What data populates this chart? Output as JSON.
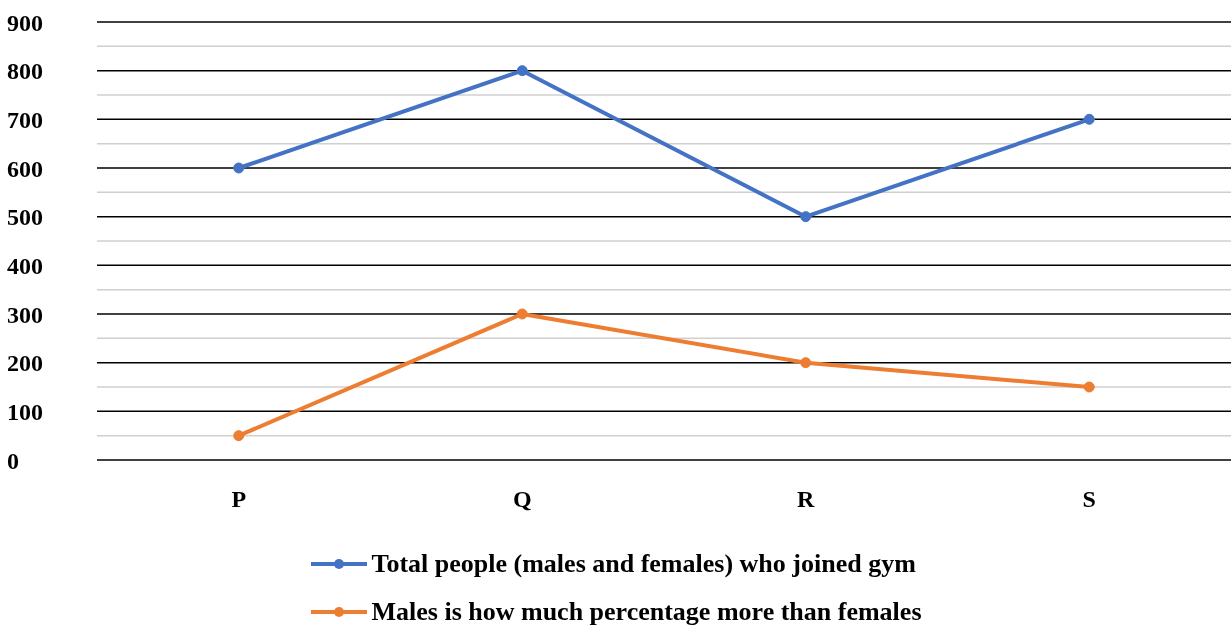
{
  "chart_data": {
    "type": "line",
    "categories": [
      "P",
      "Q",
      "R",
      "S"
    ],
    "series": [
      {
        "name": "Total people (males and females) who joined gym",
        "color": "#4472c4",
        "values": [
          600,
          800,
          500,
          700
        ]
      },
      {
        "name": "Males is how much percentage more than females",
        "color": "#ed7d31",
        "values": [
          50,
          300,
          200,
          150
        ]
      }
    ],
    "ylim": [
      0,
      900
    ],
    "yticks": [
      0,
      {
        "value": 50,
        "label": null
      },
      100,
      {
        "value": 150,
        "label": null
      },
      200,
      {
        "value": 250,
        "label": null
      },
      300,
      {
        "value": 350,
        "label": null
      },
      400,
      {
        "value": 450,
        "label": null
      },
      500,
      {
        "value": 550,
        "label": null
      },
      600,
      {
        "value": 650,
        "label": null
      },
      700,
      {
        "value": 750,
        "label": null
      },
      800,
      {
        "value": 850,
        "label": null
      },
      900
    ],
    "grid": "y",
    "legend": "bottom",
    "marker": "circle",
    "line_style": "solid"
  }
}
